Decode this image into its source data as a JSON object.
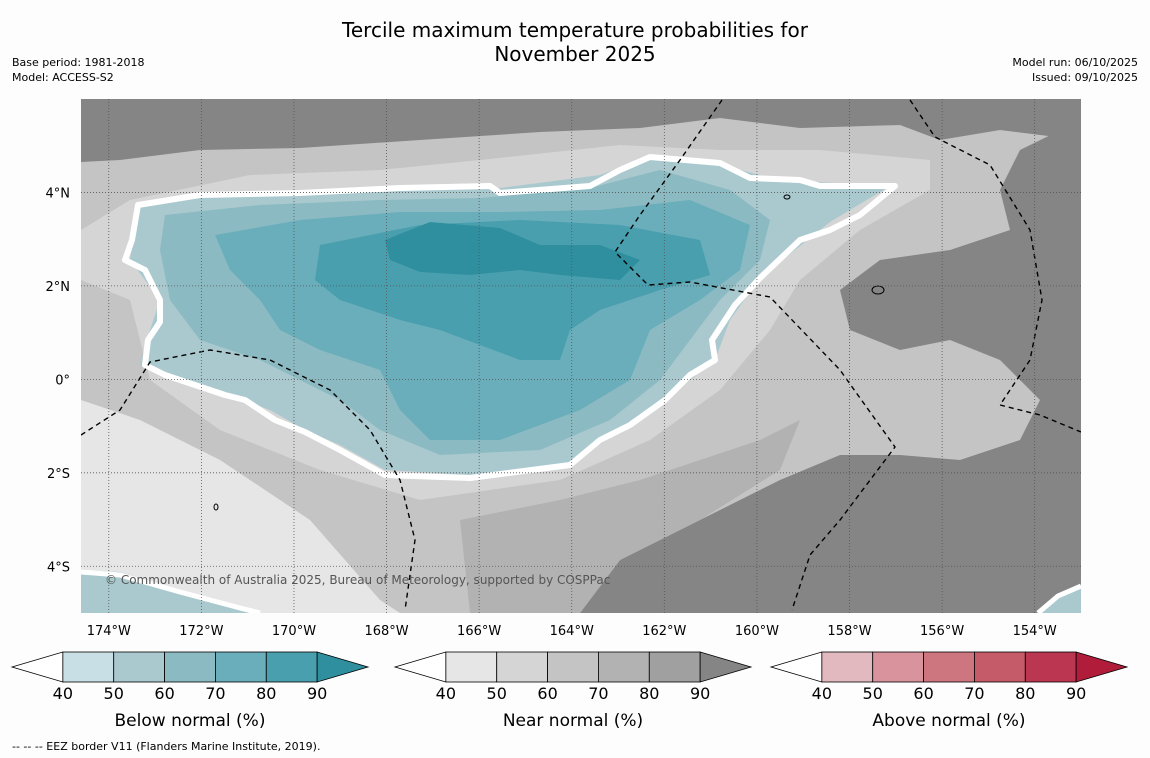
{
  "title": {
    "line1": "Tercile maximum temperature probabilities for",
    "line2": "November 2025"
  },
  "meta_left": {
    "base_period": "Base period: 1981-2018",
    "model": "Model: ACCESS-S2"
  },
  "meta_right": {
    "model_run": "Model run: 06/10/2025",
    "issued": "Issued: 09/10/2025"
  },
  "map": {
    "lon_labels": [
      "174°W",
      "172°W",
      "170°W",
      "168°W",
      "166°W",
      "164°W",
      "162°W",
      "160°W",
      "158°W",
      "156°W",
      "154°W"
    ],
    "lat_labels": [
      "4°N",
      "2°N",
      "0°",
      "2°S",
      "4°S"
    ],
    "lon_values": [
      -174,
      -172,
      -170,
      -168,
      -166,
      -164,
      -162,
      -160,
      -158,
      -156,
      -154
    ],
    "lat_values": [
      4,
      2,
      0,
      -2,
      -4
    ],
    "lon_range": [
      -174.6,
      -153.0
    ],
    "lat_range": [
      -5.0,
      6.0
    ],
    "copyright": "© Commonwealth of Australia 2025, Bureau of Meteorology, supported by COSPPac",
    "border_color": "#ffffff",
    "eez_color": "#000000"
  },
  "colorbars": [
    {
      "label": "Below normal (%)",
      "ticks": [
        "40",
        "50",
        "60",
        "70",
        "80",
        "90"
      ],
      "colors": [
        "#ffffff",
        "#c8e0e5",
        "#a9c9cf",
        "#8cbac2",
        "#6aaebb",
        "#4a9fae",
        "#2f8f9f"
      ]
    },
    {
      "label": "Near normal (%)",
      "ticks": [
        "40",
        "50",
        "60",
        "70",
        "80",
        "90"
      ],
      "colors": [
        "#ffffff",
        "#e6e6e6",
        "#d5d5d5",
        "#c4c4c4",
        "#b2b2b2",
        "#a0a0a0",
        "#858585"
      ]
    },
    {
      "label": "Above normal (%)",
      "ticks": [
        "40",
        "50",
        "60",
        "70",
        "80",
        "90"
      ],
      "colors": [
        "#ffffff",
        "#e3b9c0",
        "#d8939c",
        "#cd7680",
        "#c55a68",
        "#bb3650",
        "#b01c3a"
      ]
    }
  ],
  "footnote": "--  --  -- EEZ border V11 (Flanders Marine Institute, 2019)."
}
